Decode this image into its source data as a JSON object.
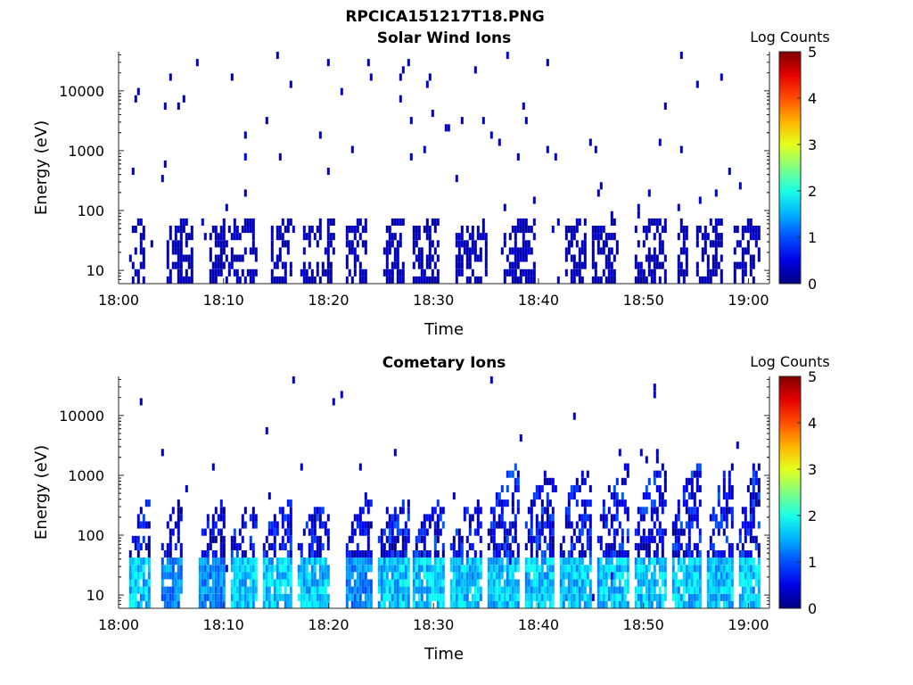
{
  "figure": {
    "title": "RPCICA151217T18.PNG"
  },
  "chart_data": [
    {
      "type": "heatmap",
      "title": "Solar Wind Ions",
      "xlabel": "Time",
      "ylabel": "Energy (eV)",
      "yscale": "log",
      "ylim": [
        6,
        45000
      ],
      "xlim": [
        "18:00",
        "19:02"
      ],
      "xticks": [
        "18:00",
        "18:10",
        "18:20",
        "18:30",
        "18:40",
        "18:50",
        "19:00"
      ],
      "yticks": [
        "10",
        "100",
        "1000",
        "10000"
      ],
      "colorbar": {
        "label": "Log Counts",
        "range": [
          0,
          5
        ],
        "ticks": [
          "0",
          "1",
          "2",
          "3",
          "4",
          "5"
        ],
        "colormap": "jet"
      },
      "time_range_minutes": [
        1,
        61.2
      ],
      "low_energy_bursts": [
        {
          "start": 1.0,
          "end": 2.5,
          "peak_log_counts": 0.3
        },
        {
          "start": 4.5,
          "end": 7.0,
          "peak_log_counts": 0.3
        },
        {
          "start": 8.5,
          "end": 11.0,
          "peak_log_counts": 0.3
        },
        {
          "start": 11.0,
          "end": 13.0,
          "peak_log_counts": 0.3
        },
        {
          "start": 14.5,
          "end": 16.5,
          "peak_log_counts": 0.3
        },
        {
          "start": 17.5,
          "end": 20.5,
          "peak_log_counts": 0.3
        },
        {
          "start": 21.5,
          "end": 23.5,
          "peak_log_counts": 0.3
        },
        {
          "start": 25.0,
          "end": 27.0,
          "peak_log_counts": 0.3
        },
        {
          "start": 28.0,
          "end": 30.5,
          "peak_log_counts": 0.3
        },
        {
          "start": 32.0,
          "end": 35.0,
          "peak_log_counts": 0.3
        },
        {
          "start": 36.5,
          "end": 39.5,
          "peak_log_counts": 0.3
        },
        {
          "start": 42.5,
          "end": 44.5,
          "peak_log_counts": 0.3
        },
        {
          "start": 45.0,
          "end": 47.5,
          "peak_log_counts": 0.3
        },
        {
          "start": 49.0,
          "end": 52.0,
          "peak_log_counts": 0.3
        },
        {
          "start": 53.0,
          "end": 54.0,
          "peak_log_counts": 0.3
        },
        {
          "start": 55.0,
          "end": 57.5,
          "peak_log_counts": 0.3
        },
        {
          "start": 58.5,
          "end": 61.0,
          "peak_log_counts": 0.3
        }
      ]
    },
    {
      "type": "heatmap",
      "title": "Cometary Ions",
      "xlabel": "Time",
      "ylabel": "Energy (eV)",
      "yscale": "log",
      "ylim": [
        6,
        45000
      ],
      "xlim": [
        "18:00",
        "19:02"
      ],
      "xticks": [
        "18:00",
        "18:10",
        "18:20",
        "18:30",
        "18:40",
        "18:50",
        "19:00"
      ],
      "yticks": [
        "10",
        "100",
        "1000",
        "10000"
      ],
      "colorbar": {
        "label": "Log Counts",
        "range": [
          0,
          5
        ],
        "ticks": [
          "0",
          "1",
          "2",
          "3",
          "4",
          "5"
        ],
        "colormap": "jet"
      },
      "time_range_minutes": [
        1,
        61.2
      ],
      "low_energy_bursts": [
        {
          "start": 1.0,
          "end": 3.0,
          "peak_log_counts": 2.0
        },
        {
          "start": 4.0,
          "end": 6.0,
          "peak_log_counts": 1.6
        },
        {
          "start": 7.5,
          "end": 10.0,
          "peak_log_counts": 1.6
        },
        {
          "start": 10.5,
          "end": 13.0,
          "peak_log_counts": 2.0
        },
        {
          "start": 13.5,
          "end": 16.5,
          "peak_log_counts": 2.0
        },
        {
          "start": 17.0,
          "end": 20.0,
          "peak_log_counts": 2.0
        },
        {
          "start": 21.5,
          "end": 24.0,
          "peak_log_counts": 1.6
        },
        {
          "start": 24.5,
          "end": 27.5,
          "peak_log_counts": 2.0
        },
        {
          "start": 28.0,
          "end": 31.0,
          "peak_log_counts": 2.0
        },
        {
          "start": 31.5,
          "end": 34.5,
          "peak_log_counts": 2.0
        },
        {
          "start": 35.0,
          "end": 38.0,
          "peak_log_counts": 2.0
        },
        {
          "start": 38.5,
          "end": 41.5,
          "peak_log_counts": 2.0
        },
        {
          "start": 42.0,
          "end": 45.0,
          "peak_log_counts": 2.0
        },
        {
          "start": 45.5,
          "end": 48.5,
          "peak_log_counts": 2.0
        },
        {
          "start": 49.0,
          "end": 52.0,
          "peak_log_counts": 2.0
        },
        {
          "start": 52.5,
          "end": 55.5,
          "peak_log_counts": 2.0
        },
        {
          "start": 56.0,
          "end": 58.5,
          "peak_log_counts": 2.0
        },
        {
          "start": 59.0,
          "end": 61.0,
          "peak_log_counts": 2.0
        }
      ]
    }
  ]
}
